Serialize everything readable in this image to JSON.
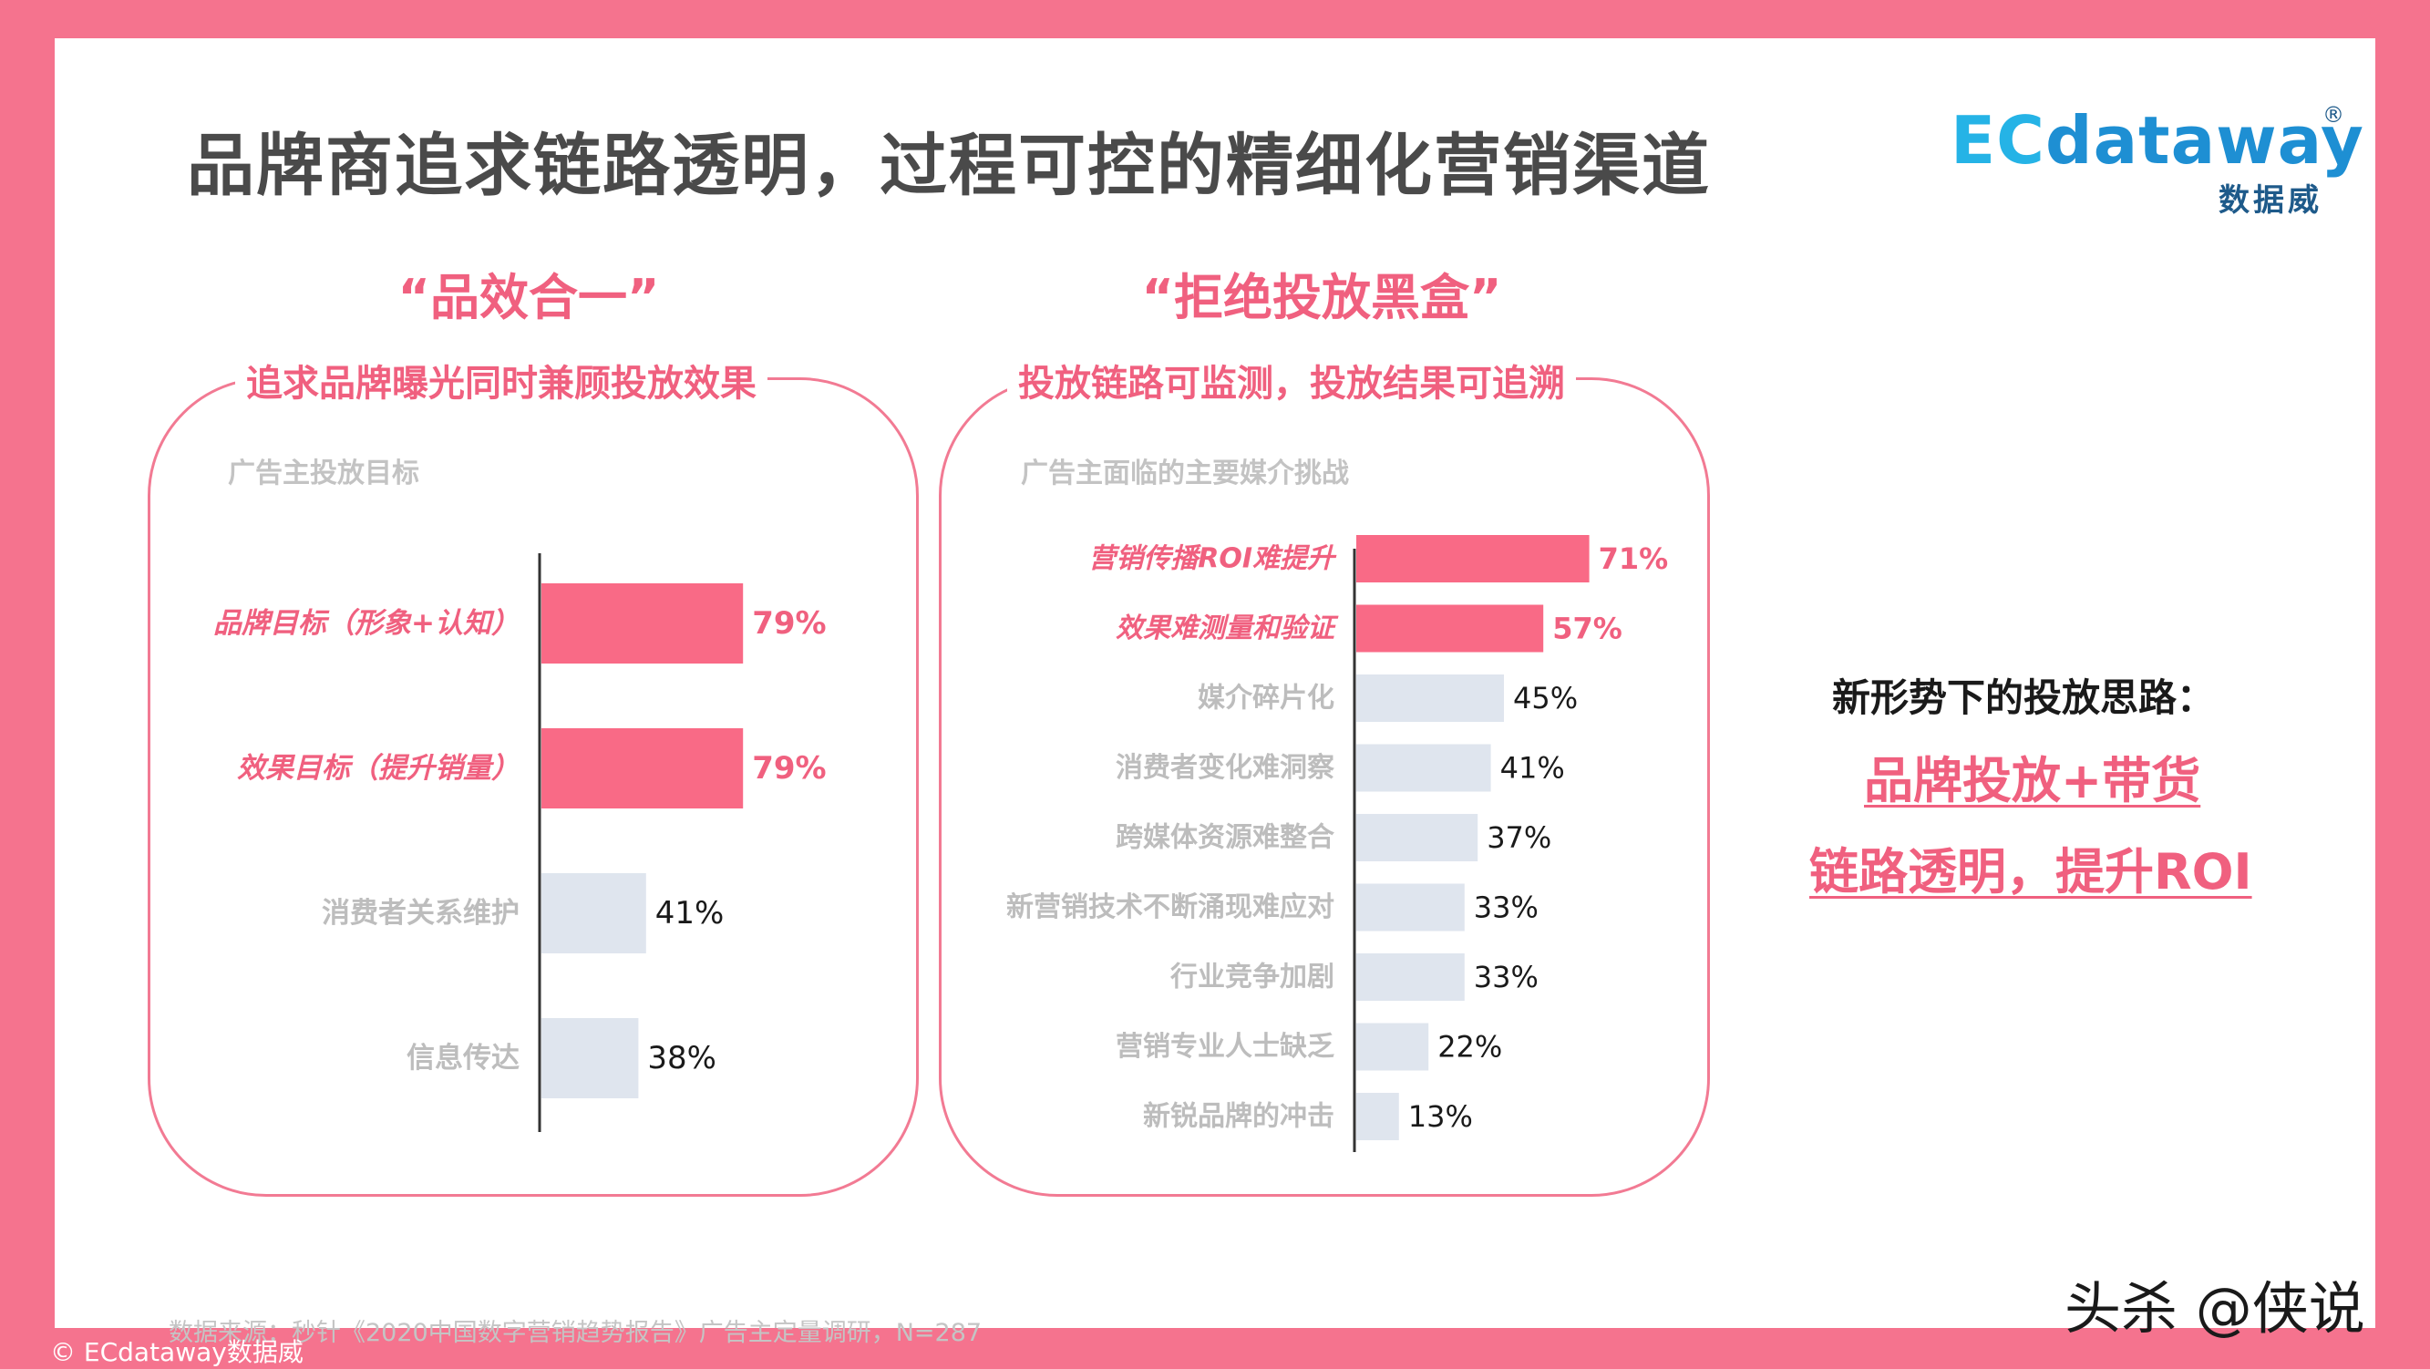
{
  "title": "品牌商追求链路透明，过程可控的精细化营销渠道",
  "logo": {
    "brand_prefix": "EC",
    "brand_rest": "dataway",
    "registered": "®",
    "sub": "数据威"
  },
  "left_panel": {
    "quote": "“品效合一”",
    "subhead": "追求品牌曝光同时兼顾投放效果",
    "label": "广告主投放目标"
  },
  "right_panel": {
    "quote": "“拒绝投放黑盒”",
    "subhead": "投放链路可监测，投放结果可追溯",
    "label": "广告主面临的主要媒介挑战"
  },
  "takeaway": {
    "heading": "新形势下的投放思路：",
    "line1": "品牌投放+带货",
    "line2": "链路透明，提升ROI"
  },
  "source": "数据来源：秒针《2020中国数字营销趋势报告》广告主定量调研，N=287",
  "watermark": "头杀 @侠说",
  "copyright": "© ECdataway数据威",
  "colors": {
    "highlight": "#f96a86",
    "normal": "#dfe5ee",
    "label_highlight": "#f0607f",
    "label_normal": "#bdbdbd"
  },
  "chart_data": [
    {
      "type": "bar",
      "orientation": "horizontal",
      "title": "广告主投放目标",
      "categories": [
        "品牌目标（形象+认知）",
        "效果目标（提升销量）",
        "消费者关系维护",
        "信息传达"
      ],
      "values": [
        79,
        79,
        41,
        38
      ],
      "value_labels": [
        "79%",
        "79%",
        "41%",
        "38%"
      ],
      "highlighted": [
        true,
        true,
        false,
        false
      ],
      "unit": "%"
    },
    {
      "type": "bar",
      "orientation": "horizontal",
      "title": "广告主面临的主要媒介挑战",
      "categories": [
        "营销传播ROI难提升",
        "效果难测量和验证",
        "媒介碎片化",
        "消费者变化难洞察",
        "跨媒体资源难整合",
        "新营销技术不断涌现难应对",
        "行业竞争加剧",
        "营销专业人士缺乏",
        "新锐品牌的冲击"
      ],
      "values": [
        71,
        57,
        45,
        41,
        37,
        33,
        33,
        22,
        13
      ],
      "value_labels": [
        "71%",
        "57%",
        "45%",
        "41%",
        "37%",
        "33%",
        "33%",
        "22%",
        "13%"
      ],
      "highlighted": [
        true,
        true,
        false,
        false,
        false,
        false,
        false,
        false,
        false
      ],
      "unit": "%"
    }
  ]
}
